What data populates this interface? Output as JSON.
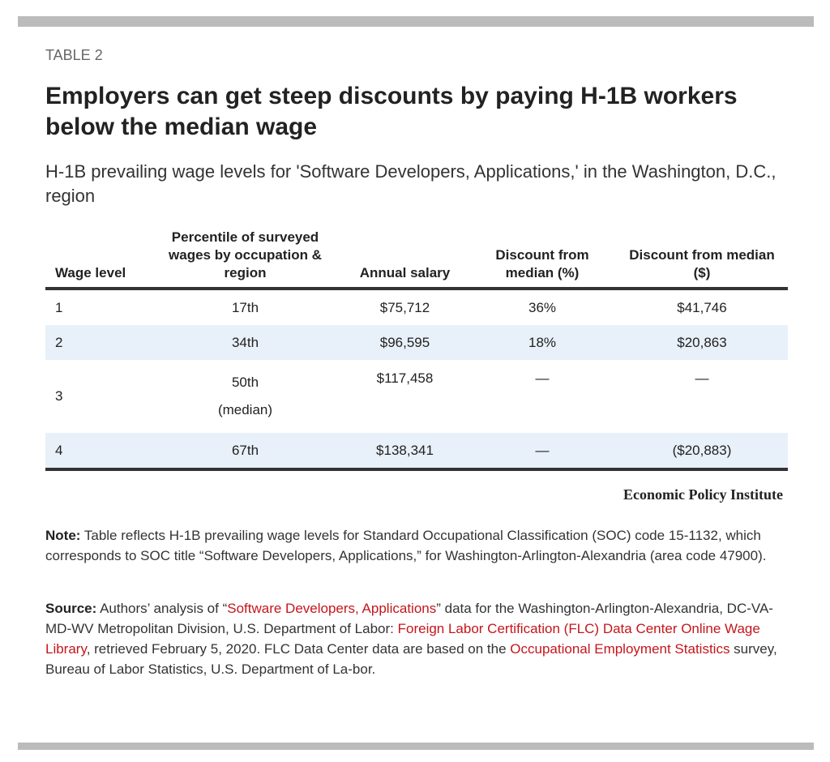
{
  "header": {
    "label": "TABLE 2",
    "title": "Employers can get steep discounts by paying H-1B workers below the median wage",
    "subtitle": "H-1B prevailing wage levels for 'Software Developers, Applications,' in the Washington, D.C., region"
  },
  "chart_data": {
    "type": "table",
    "columns": [
      "Wage level",
      "Percentile of surveyed wages by occupation & region",
      "Annual salary",
      "Discount from median (%)",
      "Discount from median ($)"
    ],
    "rows": [
      {
        "level": "1",
        "percentile": "17th",
        "percentile_note": "",
        "salary": "$75,712",
        "discount_pct": "36%",
        "discount_usd": "$41,746"
      },
      {
        "level": "2",
        "percentile": "34th",
        "percentile_note": "",
        "salary": "$96,595",
        "discount_pct": "18%",
        "discount_usd": "$20,863"
      },
      {
        "level": "3",
        "percentile": "50th",
        "percentile_note": "(median)",
        "salary": "$117,458",
        "discount_pct": "—",
        "discount_usd": "—"
      },
      {
        "level": "4",
        "percentile": "67th",
        "percentile_note": "",
        "salary": "$138,341",
        "discount_pct": "—",
        "discount_usd": "($20,883)"
      }
    ],
    "row_shading_color": "#e8f0f9"
  },
  "credit": "Economic Policy Institute",
  "note": {
    "label": "Note:",
    "text": " Table reflects H-1B prevailing wage levels for Standard Occupational Classification (SOC) code 15-1132, which corresponds to SOC title “Software Developers, Applications,” for Washington-Arlington-Alexandria (area code 47900)."
  },
  "source": {
    "label": "Source:",
    "t1": " Authors’ analysis of “",
    "link1": "Software Developers, Applications",
    "t2": "” data for the Washington-Arlington-Alexandria, DC-VA-MD-WV Metropolitan Division, U.S. Department of Labor: ",
    "link2": "Foreign Labor Certification (FLC) Data Center Online Wage Library",
    "t3": ", retrieved February 5, 2020. FLC Data Center data are based on the ",
    "link3": "Occupational Employment Statistics",
    "t4": " survey, Bureau of Labor Statistics, U.S. Department of La-bor."
  },
  "colors": {
    "link": "#c4161c",
    "rule": "#333333",
    "bar": "#bbbbbb"
  }
}
